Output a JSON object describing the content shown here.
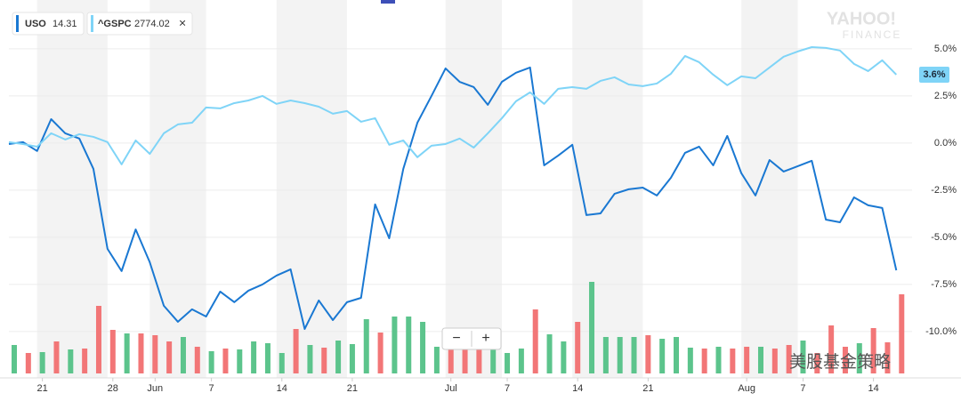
{
  "chart_data": {
    "type": "line",
    "categories": [
      null,
      null,
      "21",
      null,
      null,
      null,
      null,
      "28",
      null,
      null,
      "Jun",
      null,
      null,
      null,
      "7",
      null,
      null,
      null,
      null,
      "14",
      null,
      null,
      null,
      null,
      "21",
      null,
      null,
      null,
      null,
      null,
      null,
      "Jul",
      null,
      null,
      null,
      "7",
      null,
      null,
      null,
      null,
      "14",
      null,
      null,
      null,
      null,
      "21",
      null,
      null,
      null,
      null,
      null,
      null,
      "Aug",
      null,
      null,
      null,
      "7",
      null,
      null,
      null,
      null,
      "14",
      null,
      null
    ],
    "series": [
      {
        "name": "USO",
        "price": "14.31",
        "color": "#1a78d2",
        "values": [
          -0.05,
          0.05,
          -0.42,
          1.27,
          0.52,
          0.24,
          -1.37,
          -5.61,
          -6.79,
          -4.58,
          -6.32,
          -8.63,
          -9.48,
          -8.82,
          -9.2,
          -7.88,
          -8.44,
          -7.83,
          -7.5,
          -7.03,
          -6.7,
          -9.86,
          -8.35,
          -9.39,
          -8.44,
          -8.21,
          -3.25,
          -5.05,
          -1.37,
          1.08,
          2.5,
          3.96,
          3.25,
          2.97,
          2.03,
          3.25,
          3.73,
          4.01,
          -1.18,
          -0.66,
          -0.09,
          -3.82,
          -3.73,
          -2.69,
          -2.45,
          -2.36,
          -2.78,
          -1.84,
          -0.52,
          -0.19,
          -1.18,
          0.38,
          -1.6,
          -2.78,
          -0.9,
          -1.51,
          -1.23,
          -0.94,
          -4.06,
          -4.2,
          -2.88,
          -3.3,
          -3.44,
          -6.75
        ]
      },
      {
        "name": "^GSPC",
        "price": "2774.02",
        "close_symbol": "×",
        "color": "#7fd4f7",
        "current_label": "3.6%",
        "values": [
          0.05,
          -0.05,
          -0.19,
          0.52,
          0.19,
          0.47,
          0.33,
          0.05,
          -1.13,
          0.14,
          -0.57,
          0.52,
          0.99,
          1.08,
          1.89,
          1.84,
          2.12,
          2.26,
          2.5,
          2.08,
          2.26,
          2.12,
          1.93,
          1.56,
          1.7,
          1.13,
          1.32,
          -0.09,
          0.14,
          -0.75,
          -0.14,
          -0.05,
          0.24,
          -0.24,
          0.52,
          1.32,
          2.22,
          2.69,
          2.08,
          2.88,
          2.97,
          2.88,
          3.3,
          3.49,
          3.11,
          3.02,
          3.16,
          3.68,
          4.62,
          4.29,
          3.63,
          3.07,
          3.54,
          3.44,
          4.01,
          4.58,
          4.86,
          5.09,
          5.05,
          4.91,
          4.2,
          3.82,
          4.39,
          3.63
        ]
      }
    ],
    "volume": {
      "ylim": [
        0,
        420
      ],
      "up_color": "#5cc48c",
      "down_color": "#f27677",
      "values": [
        32,
        23,
        24,
        36,
        27,
        28,
        76,
        49,
        45,
        45,
        43,
        36,
        41,
        30,
        25,
        28,
        27,
        36,
        34,
        23,
        50,
        32,
        29,
        37,
        33,
        61,
        46,
        64,
        64,
        58,
        30,
        30,
        30,
        30,
        33,
        23,
        28,
        72,
        44,
        36,
        58,
        103,
        41,
        41,
        41,
        43,
        39,
        41,
        29,
        28,
        30,
        28,
        30,
        30,
        28,
        32,
        37,
        23,
        54,
        30,
        34,
        51,
        35,
        89
      ],
      "direction": [
        "up",
        "down",
        "up",
        "down",
        "up",
        "down",
        "down",
        "down",
        "up",
        "down",
        "down",
        "down",
        "up",
        "down",
        "up",
        "down",
        "up",
        "up",
        "up",
        "up",
        "down",
        "up",
        "down",
        "up",
        "up",
        "up",
        "down",
        "up",
        "up",
        "up",
        "up",
        "down",
        "down",
        "down",
        "up",
        "up",
        "up",
        "down",
        "up",
        "up",
        "down",
        "up",
        "up",
        "up",
        "up",
        "down",
        "up",
        "up",
        "up",
        "down",
        "up",
        "down",
        "down",
        "up",
        "down",
        "down",
        "up",
        "down",
        "down",
        "down",
        "up",
        "down",
        "down",
        "down"
      ]
    },
    "ylim": [
      -12.22,
      7.59
    ],
    "yticks": [
      {
        "value": 5,
        "label": "5.0%"
      },
      {
        "value": 2.5,
        "label": "2.5%"
      },
      {
        "value": 0,
        "label": "0.0%"
      },
      {
        "value": -2.5,
        "label": "-2.5%"
      },
      {
        "value": -5,
        "label": "-5.0%"
      },
      {
        "value": -7.5,
        "label": "-7.5%"
      },
      {
        "value": -10,
        "label": "-10.0%"
      }
    ],
    "grid": true,
    "logo": {
      "line1": "YAHOO!",
      "line2": "FINANCE"
    },
    "zoom": {
      "out": "−",
      "in": "+"
    },
    "watermark": "美股基金策略"
  }
}
